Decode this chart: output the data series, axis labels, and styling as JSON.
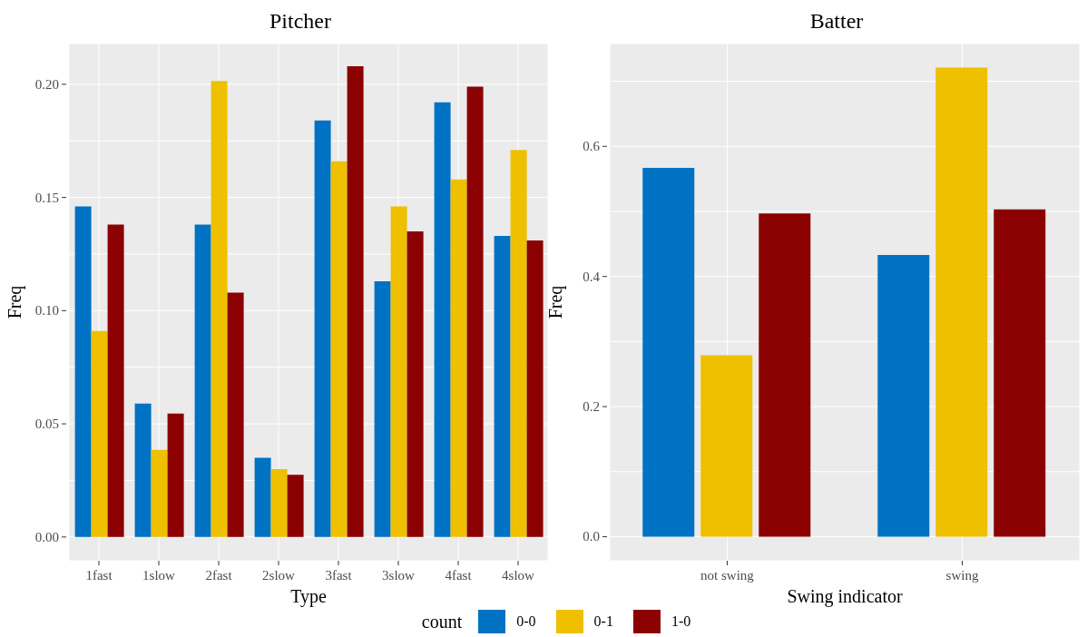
{
  "chart_data": [
    {
      "type": "bar",
      "title": "Pitcher",
      "xlabel": "Type",
      "ylabel": "Freq",
      "legend_title": "count",
      "legend": "bottom",
      "grid": true,
      "categories": [
        "1fast",
        "1slow",
        "2fast",
        "2slow",
        "3fast",
        "3slow",
        "4fast",
        "4slow"
      ],
      "series": [
        {
          "name": "0-0",
          "color": "#0072c3",
          "values": [
            0.146,
            0.059,
            0.138,
            0.035,
            0.184,
            0.113,
            0.192,
            0.133
          ]
        },
        {
          "name": "0-1",
          "color": "#eec000",
          "values": [
            0.091,
            0.0385,
            0.2015,
            0.03,
            0.166,
            0.146,
            0.158,
            0.171
          ]
        },
        {
          "name": "1-0",
          "color": "#8b0000",
          "values": [
            0.138,
            0.0545,
            0.108,
            0.0275,
            0.208,
            0.135,
            0.199,
            0.131
          ]
        }
      ],
      "ylim": [
        -0.0105,
        0.218
      ],
      "yticks": [
        {
          "value": 0,
          "label": "0.00"
        },
        {
          "value": 0.025,
          "label": null
        },
        {
          "value": 0.05,
          "label": "0.05"
        },
        {
          "value": 0.075,
          "label": null
        },
        {
          "value": 0.1,
          "label": "0.10"
        },
        {
          "value": 0.125,
          "label": null
        },
        {
          "value": 0.15,
          "label": "0.15"
        },
        {
          "value": 0.175,
          "label": null
        },
        {
          "value": 0.2,
          "label": "0.20"
        }
      ]
    },
    {
      "type": "bar",
      "title": "Batter",
      "xlabel": "Swing indicator",
      "ylabel": "Freq",
      "grid": true,
      "categories": [
        "not swing",
        "swing"
      ],
      "series": [
        {
          "color": "#0072c3",
          "values": [
            0.567,
            0.433
          ]
        },
        {
          "color": "#eec000",
          "values": [
            0.279,
            0.721
          ]
        },
        {
          "color": "#8b0000",
          "values": [
            0.497,
            0.503
          ]
        }
      ],
      "ylim": [
        -0.037,
        0.758
      ],
      "yticks": [
        {
          "value": 0,
          "label": "0.0"
        },
        {
          "value": 0.1,
          "label": null
        },
        {
          "value": 0.2,
          "label": "0.2"
        },
        {
          "value": 0.3,
          "label": null
        },
        {
          "value": 0.4,
          "label": "0.4"
        },
        {
          "value": 0.5,
          "label": null
        },
        {
          "value": 0.6,
          "label": "0.6"
        },
        {
          "value": 0.7,
          "label": null
        }
      ]
    }
  ]
}
